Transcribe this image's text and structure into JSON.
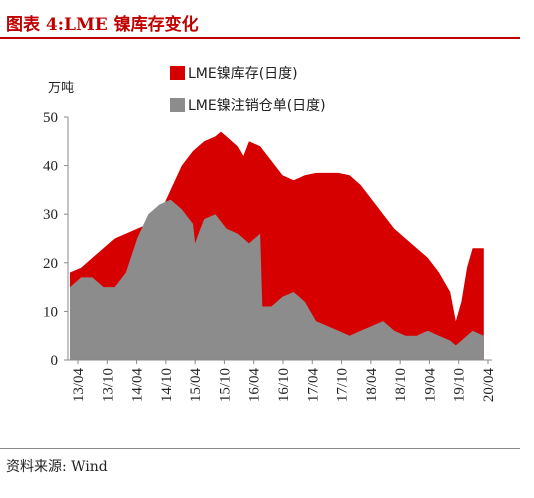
{
  "title": "图表 4:LME 镍库存变化",
  "source": "资料来源: Wind",
  "chart_data": {
    "type": "area",
    "unit_label": "万吨",
    "ylim": [
      0,
      50
    ],
    "yticks": [
      "0",
      "10",
      "20",
      "30",
      "40",
      "50"
    ],
    "xticks": [
      "13/04",
      "13/10",
      "14/04",
      "14/10",
      "15/04",
      "15/10",
      "16/04",
      "16/10",
      "17/04",
      "17/10",
      "18/04",
      "18/10",
      "19/04",
      "19/10",
      "20/04"
    ],
    "grid": false,
    "legend_position": "top",
    "colors": {
      "stock": "#d60000",
      "warrants": "#8c8c8c",
      "axis": "#888888"
    },
    "series": [
      {
        "name": "LME镍库存(日度)",
        "points": [
          [
            0,
            18
          ],
          [
            1,
            19
          ],
          [
            2,
            21
          ],
          [
            3,
            23
          ],
          [
            4,
            25
          ],
          [
            5,
            26
          ],
          [
            6,
            27
          ],
          [
            7,
            28
          ],
          [
            8,
            30
          ],
          [
            9,
            35
          ],
          [
            10,
            40
          ],
          [
            11,
            43
          ],
          [
            12,
            45
          ],
          [
            13,
            46
          ],
          [
            13.5,
            47
          ],
          [
            14,
            46
          ],
          [
            15,
            44
          ],
          [
            15.5,
            42
          ],
          [
            16,
            45
          ],
          [
            17,
            44
          ],
          [
            18,
            41
          ],
          [
            19,
            38
          ],
          [
            20,
            37
          ],
          [
            21,
            38
          ],
          [
            22,
            38.5
          ],
          [
            23,
            38.5
          ],
          [
            24,
            38.5
          ],
          [
            25,
            38
          ],
          [
            26,
            36
          ],
          [
            27,
            33
          ],
          [
            28,
            30
          ],
          [
            29,
            27
          ],
          [
            30,
            25
          ],
          [
            31,
            23
          ],
          [
            32,
            21
          ],
          [
            33,
            18
          ],
          [
            34,
            14
          ],
          [
            34.5,
            8
          ],
          [
            35,
            12
          ],
          [
            35.5,
            19
          ],
          [
            36,
            23
          ],
          [
            36.5,
            23
          ],
          [
            37,
            23
          ]
        ]
      },
      {
        "name": "LME镍注销仓单(日度)",
        "points": [
          [
            0,
            15
          ],
          [
            1,
            17
          ],
          [
            2,
            17
          ],
          [
            3,
            15
          ],
          [
            4,
            15
          ],
          [
            5,
            18
          ],
          [
            6,
            25
          ],
          [
            7,
            30
          ],
          [
            8,
            32
          ],
          [
            9,
            33
          ],
          [
            10,
            31
          ],
          [
            11,
            28
          ],
          [
            11.2,
            24
          ],
          [
            11.5,
            26
          ],
          [
            12,
            29
          ],
          [
            13,
            30
          ],
          [
            14,
            27
          ],
          [
            15,
            26
          ],
          [
            16,
            24
          ],
          [
            17,
            26
          ],
          [
            17.2,
            11
          ],
          [
            18,
            11
          ],
          [
            19,
            13
          ],
          [
            20,
            14
          ],
          [
            21,
            12
          ],
          [
            22,
            8
          ],
          [
            23,
            7
          ],
          [
            24,
            6
          ],
          [
            25,
            5
          ],
          [
            26,
            6
          ],
          [
            27,
            7
          ],
          [
            28,
            8
          ],
          [
            29,
            6
          ],
          [
            30,
            5
          ],
          [
            31,
            5
          ],
          [
            32,
            6
          ],
          [
            33,
            5
          ],
          [
            34,
            4
          ],
          [
            34.5,
            3
          ],
          [
            35,
            4
          ],
          [
            36,
            6
          ],
          [
            37,
            5
          ]
        ]
      }
    ]
  }
}
